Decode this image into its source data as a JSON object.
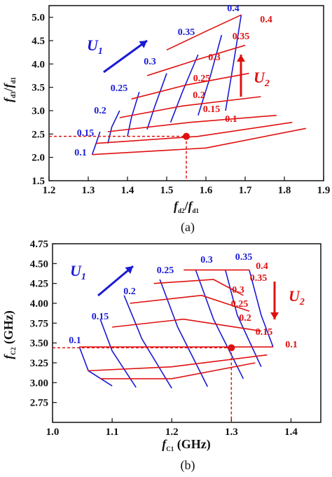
{
  "colors": {
    "blue": "#1a1ad6",
    "red": "#e01010",
    "axis": "#111111"
  },
  "chart_data": [
    {
      "type": "line",
      "panel_caption": "(a)",
      "xlabel_parts": [
        "f",
        "d2",
        "/",
        "f",
        "d1"
      ],
      "ylabel_parts": [
        "f",
        "d3",
        "/",
        "f",
        "d1"
      ],
      "xlim": [
        1.2,
        1.9
      ],
      "ylim": [
        1.5,
        5.25
      ],
      "xticks": [
        "1.2",
        "1.3",
        "1.4",
        "1.5",
        "1.6",
        "1.7",
        "1.8",
        "1.9"
      ],
      "yticks": [
        "1.5",
        "2.0",
        "2.5",
        "3.0",
        "3.5",
        "4.0",
        "4.5",
        "5.0"
      ],
      "grid": false,
      "arrows": [
        {
          "name": "U",
          "sub": "1",
          "color": "#1a1ad6",
          "direction": "up-right"
        },
        {
          "name": "U",
          "sub": "2",
          "color": "#e01010",
          "direction": "up"
        }
      ],
      "marker": {
        "x": 1.55,
        "y": 2.45
      },
      "blue_labels": [
        "0.1",
        "0.15",
        "0.2",
        "0.25",
        "0.3",
        "0.35",
        "0.4"
      ],
      "red_labels": [
        "0.1",
        "0.15",
        "0.2",
        "0.25",
        "0.3",
        "0.35",
        "0.4"
      ],
      "mesh_corners": {
        "TL": [
          1.31,
          2.06
        ],
        "TR": [
          1.69,
          5.05
        ],
        "BL": [
          1.31,
          2.06
        ],
        "BR": [
          1.855,
          2.62
        ]
      },
      "series": [
        {
          "color": "#1a1ad6",
          "points": [
            [
              1.31,
              2.06
            ],
            [
              1.32,
              2.3
            ],
            [
              1.33,
              2.55
            ]
          ]
        },
        {
          "color": "#1a1ad6",
          "points": [
            [
              1.35,
              2.3
            ],
            [
              1.36,
              2.65
            ],
            [
              1.38,
              3.0
            ]
          ]
        },
        {
          "color": "#1a1ad6",
          "points": [
            [
              1.4,
              2.45
            ],
            [
              1.41,
              2.85
            ],
            [
              1.43,
              3.4
            ]
          ]
        },
        {
          "color": "#1a1ad6",
          "points": [
            [
              1.45,
              2.6
            ],
            [
              1.47,
              3.1
            ],
            [
              1.5,
              3.8
            ]
          ]
        },
        {
          "color": "#1a1ad6",
          "points": [
            [
              1.51,
              2.75
            ],
            [
              1.54,
              3.4
            ],
            [
              1.58,
              4.2
            ]
          ]
        },
        {
          "color": "#1a1ad6",
          "points": [
            [
              1.58,
              2.9
            ],
            [
              1.61,
              3.7
            ],
            [
              1.64,
              4.62
            ]
          ]
        },
        {
          "color": "#1a1ad6",
          "points": [
            [
              1.65,
              3.0
            ],
            [
              1.67,
              4.0
            ],
            [
              1.69,
              5.05
            ]
          ]
        },
        {
          "color": "#e01010",
          "points": [
            [
              1.31,
              2.06
            ],
            [
              1.6,
              2.2
            ],
            [
              1.855,
              2.62
            ]
          ]
        },
        {
          "color": "#e01010",
          "points": [
            [
              1.32,
              2.3
            ],
            [
              1.58,
              2.45
            ],
            [
              1.82,
              2.75
            ]
          ]
        },
        {
          "color": "#e01010",
          "points": [
            [
              1.35,
              2.55
            ],
            [
              1.56,
              2.75
            ],
            [
              1.78,
              2.9
            ]
          ]
        },
        {
          "color": "#e01010",
          "points": [
            [
              1.38,
              2.85
            ],
            [
              1.54,
              3.1
            ],
            [
              1.74,
              3.3
            ]
          ]
        },
        {
          "color": "#e01010",
          "points": [
            [
              1.41,
              3.25
            ],
            [
              1.55,
              3.55
            ],
            [
              1.71,
              3.8
            ]
          ]
        },
        {
          "color": "#e01010",
          "points": [
            [
              1.45,
              3.75
            ],
            [
              1.58,
              4.1
            ],
            [
              1.7,
              4.4
            ]
          ]
        },
        {
          "color": "#e01010",
          "points": [
            [
              1.5,
              4.3
            ],
            [
              1.6,
              4.7
            ],
            [
              1.69,
              5.05
            ]
          ]
        }
      ]
    },
    {
      "type": "line",
      "panel_caption": "(b)",
      "xlabel_parts": [
        "f",
        "C1",
        " (GHz)"
      ],
      "ylabel_parts": [
        "f",
        "C2",
        " (GHz)"
      ],
      "xlim": [
        1.0,
        1.45
      ],
      "ylim": [
        2.5,
        4.75
      ],
      "xticks": [
        "1.0",
        "1.1",
        "1.2",
        "1.3",
        "1.4"
      ],
      "yticks": [
        "2.75",
        "3.00",
        "3.25",
        "3.50",
        "3.75",
        "4.00",
        "4.25",
        "4.50",
        "4.75"
      ],
      "grid": false,
      "arrows": [
        {
          "name": "U",
          "sub": "1",
          "color": "#1a1ad6",
          "direction": "up-right"
        },
        {
          "name": "U",
          "sub": "2",
          "color": "#e01010",
          "direction": "down"
        }
      ],
      "marker": {
        "x": 1.3,
        "y": 3.44
      },
      "blue_labels": [
        "0.1",
        "0.15",
        "0.2",
        "0.25",
        "0.3",
        "0.35"
      ],
      "red_labels": [
        "0.4",
        "0.35",
        "0.3",
        "0.25",
        "0.2",
        "0.15",
        "0.1"
      ],
      "series": [
        {
          "color": "#1a1ad6",
          "points": [
            [
              1.045,
              3.45
            ],
            [
              1.06,
              3.15
            ],
            [
              1.1,
              2.96
            ]
          ]
        },
        {
          "color": "#1a1ad6",
          "points": [
            [
              1.08,
              3.8
            ],
            [
              1.1,
              3.4
            ],
            [
              1.14,
              2.94
            ]
          ]
        },
        {
          "color": "#1a1ad6",
          "points": [
            [
              1.12,
              4.1
            ],
            [
              1.15,
              3.55
            ],
            [
              1.2,
              2.93
            ]
          ]
        },
        {
          "color": "#1a1ad6",
          "points": [
            [
              1.18,
              4.3
            ],
            [
              1.21,
              3.7
            ],
            [
              1.26,
              2.95
            ]
          ]
        },
        {
          "color": "#1a1ad6",
          "points": [
            [
              1.24,
              4.42
            ],
            [
              1.27,
              3.8
            ],
            [
              1.32,
              3.05
            ]
          ]
        },
        {
          "color": "#1a1ad6",
          "points": [
            [
              1.29,
              4.42
            ],
            [
              1.31,
              3.85
            ],
            [
              1.35,
              3.2
            ]
          ]
        },
        {
          "color": "#1a1ad6",
          "points": [
            [
              1.33,
              4.42
            ],
            [
              1.35,
              3.85
            ],
            [
              1.37,
              3.45
            ]
          ]
        },
        {
          "color": "#e01010",
          "points": [
            [
              1.045,
              3.45
            ],
            [
              1.2,
              3.45
            ],
            [
              1.37,
              3.45
            ]
          ]
        },
        {
          "color": "#e01010",
          "points": [
            [
              1.06,
              3.15
            ],
            [
              1.2,
              3.2
            ],
            [
              1.36,
              3.35
            ]
          ]
        },
        {
          "color": "#e01010",
          "points": [
            [
              1.08,
              3.05
            ],
            [
              1.2,
              3.05
            ],
            [
              1.34,
              3.25
            ]
          ]
        },
        {
          "color": "#e01010",
          "points": [
            [
              1.1,
              3.7
            ],
            [
              1.22,
              3.8
            ],
            [
              1.35,
              3.65
            ]
          ]
        },
        {
          "color": "#e01010",
          "points": [
            [
              1.13,
              4.0
            ],
            [
              1.25,
              4.1
            ],
            [
              1.33,
              3.9
            ]
          ]
        },
        {
          "color": "#e01010",
          "points": [
            [
              1.17,
              4.25
            ],
            [
              1.27,
              4.3
            ],
            [
              1.32,
              4.1
            ]
          ]
        },
        {
          "color": "#e01010",
          "points": [
            [
              1.22,
              4.42
            ],
            [
              1.28,
              4.42
            ],
            [
              1.33,
              4.42
            ]
          ]
        }
      ]
    }
  ]
}
